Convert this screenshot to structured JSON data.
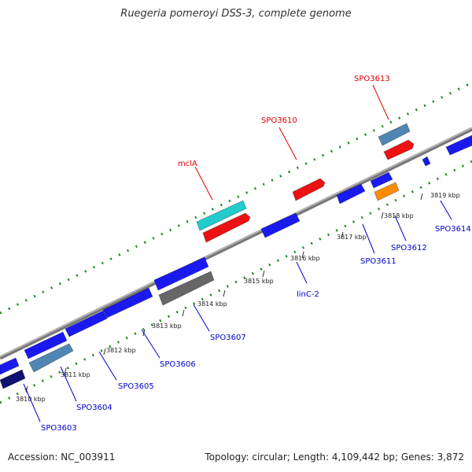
{
  "title": "Ruegeria pomeroyi DSS-3, complete genome",
  "footer": {
    "accession": "Accession: NC_003911",
    "summary": "Topology: circular; Length: 4,109,442 bp; Genes: 3,872"
  },
  "ticks": [
    "3810 kbp",
    "3811 kbp",
    "3812 kbp",
    "3813 kbp",
    "3814 kbp",
    "3815 kbp",
    "3816 kbp",
    "3817 kbp",
    "3818 kbp",
    "3819 kbp"
  ],
  "gene_labels": {
    "top": [
      "mclA",
      "SPO3610",
      "SPO3613"
    ],
    "bottom": [
      "SPO3603",
      "SPO3604",
      "SPO3605",
      "SPO3606",
      "SPO3607",
      "linC-2",
      "SPO3611",
      "SPO3612",
      "SPO3614"
    ]
  },
  "colors": {
    "label_top": "#dd0000",
    "label_bottom": "#0000cc",
    "blue": "#1a1af0",
    "red": "#ee1111",
    "cyan": "#22cccc",
    "steel": "#4f86b3",
    "gray": "#666666",
    "navy": "#101070",
    "orange": "#ff8c00",
    "dots": "#228822"
  }
}
